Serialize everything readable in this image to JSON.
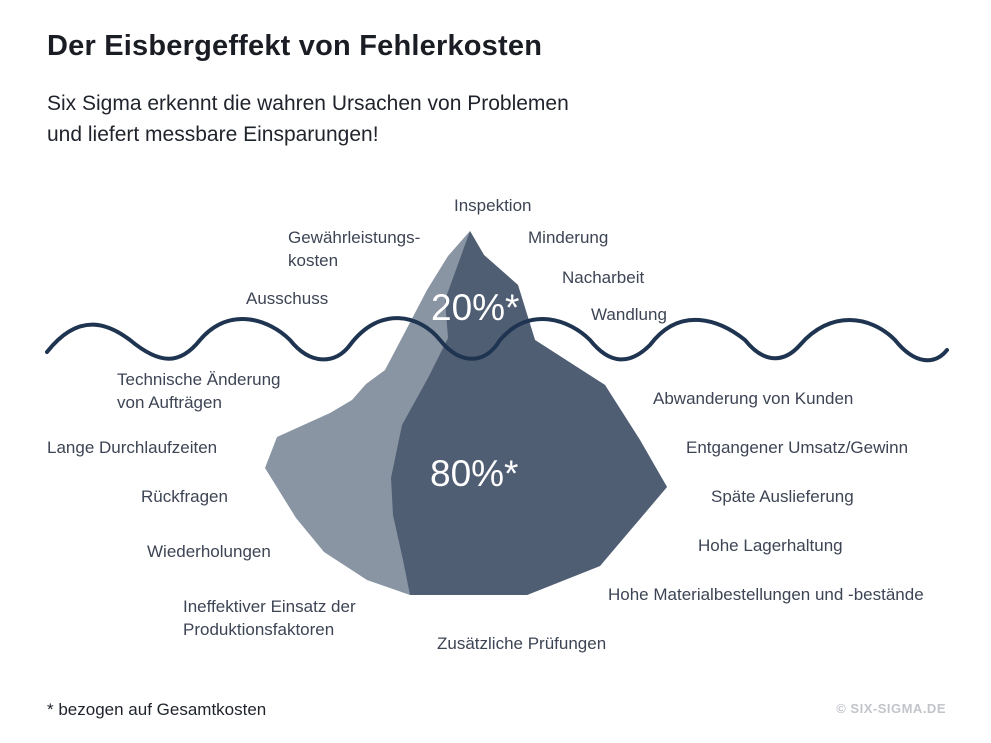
{
  "title": "Der Eisbergeffekt von Fehlerkosten",
  "subtitle": {
    "line1": "Six Sigma erkennt die wahren Ursachen von Problemen",
    "line2": "und liefert messbare Einsparungen!"
  },
  "above": {
    "percent": "20%*",
    "labels": {
      "inspektion": "Inspektion",
      "gewaehr_1": "Gewährleistungs-",
      "gewaehr_2": "kosten",
      "minderung": "Minderung",
      "nacharbeit": "Nacharbeit",
      "ausschuss": "Ausschuss",
      "wandlung": "Wandlung"
    }
  },
  "below": {
    "percent": "80%*",
    "labels": {
      "tech_1": "Technische Änderung",
      "tech_2": "von Aufträgen",
      "lange": "Lange Durchlaufzeiten",
      "rueckfragen": "Rückfragen",
      "wiederholungen": "Wiederholungen",
      "ineff_1": "Ineffektiver Einsatz der",
      "ineff_2": "Produktionsfaktoren",
      "zusaetzlich": "Zusätzliche Prüfungen",
      "abwanderung": "Abwanderung von Kunden",
      "umsatz": "Entgangener Umsatz/Gewinn",
      "spaete": "Späte Auslieferung",
      "lager": "Hohe Lagerhaltung",
      "material": "Hohe Materialbestellungen und -bestände"
    }
  },
  "footnote": "*  bezogen auf Gesamtkosten",
  "copyright": "© SIX-SIGMA.DE",
  "colors": {
    "ice_light": "#8a95a3",
    "ice_dark": "#505e74",
    "water": "#1e3450"
  }
}
